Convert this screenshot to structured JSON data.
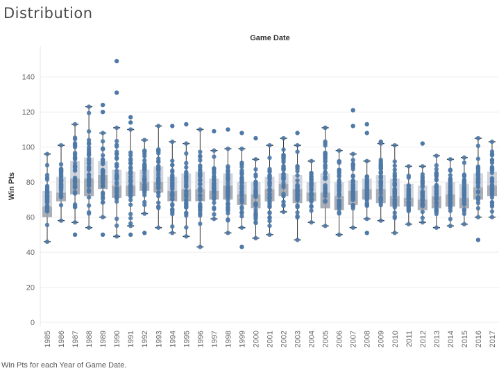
{
  "page": {
    "title": "Distribution",
    "caption": "Win Pts for each Year of Game Date."
  },
  "colors": {
    "point": "#4e79a7",
    "box_upper": "#c9ced8",
    "box_lower": "#9aa0aa",
    "whisker": "#333333",
    "grid": "#eeeeee"
  },
  "chart_data": {
    "type": "scatter",
    "overlay": "box-and-whisker",
    "title": "Game Date",
    "xlabel": "",
    "ylabel": "Win Pts",
    "ylim": [
      0,
      150
    ],
    "yticks": [
      0,
      20,
      40,
      60,
      80,
      100,
      120,
      140
    ],
    "grid": true,
    "categories": [
      "1985",
      "1986",
      "1987",
      "1988",
      "1989",
      "1990",
      "1991",
      "1992",
      "1993",
      "1994",
      "1995",
      "1996",
      "1997",
      "1998",
      "1999",
      "2000",
      "2001",
      "2002",
      "2003",
      "2004",
      "2005",
      "2006",
      "2007",
      "2008",
      "2009",
      "2010",
      "2011",
      "2012",
      "2013",
      "2014",
      "2015",
      "2016",
      "2017"
    ],
    "boxes": [
      {
        "min": 46,
        "q1": 60,
        "median": 66,
        "q3": 75,
        "max": 96
      },
      {
        "min": 58,
        "q1": 69,
        "median": 74,
        "q3": 83,
        "max": 101
      },
      {
        "min": 57,
        "q1": 73,
        "median": 82,
        "q3": 92,
        "max": 113
      },
      {
        "min": 54,
        "q1": 72,
        "median": 82,
        "q3": 94,
        "max": 123
      },
      {
        "min": 60,
        "q1": 76,
        "median": 84,
        "q3": 92,
        "max": 108
      },
      {
        "min": 49,
        "q1": 71,
        "median": 78,
        "q3": 87,
        "max": 111
      },
      {
        "min": 55,
        "q1": 72,
        "median": 78,
        "q3": 86,
        "max": 110
      },
      {
        "min": 62,
        "q1": 75,
        "median": 80,
        "q3": 87,
        "max": 104
      },
      {
        "min": 54,
        "q1": 74,
        "median": 80,
        "q3": 89,
        "max": 112
      },
      {
        "min": 51,
        "q1": 69,
        "median": 75,
        "q3": 83,
        "max": 103
      },
      {
        "min": 49,
        "q1": 69,
        "median": 76,
        "q3": 85,
        "max": 102
      },
      {
        "min": 43,
        "q1": 69,
        "median": 76,
        "q3": 86,
        "max": 110
      },
      {
        "min": 59,
        "q1": 70,
        "median": 75,
        "q3": 82,
        "max": 98
      },
      {
        "min": 51,
        "q1": 70,
        "median": 78,
        "q3": 85,
        "max": 99
      },
      {
        "min": 54,
        "q1": 67,
        "median": 73,
        "q3": 80,
        "max": 99
      },
      {
        "min": 48,
        "q1": 65,
        "median": 73,
        "q3": 80,
        "max": 93
      },
      {
        "min": 50,
        "q1": 69,
        "median": 76,
        "q3": 83,
        "max": 101
      },
      {
        "min": 63,
        "q1": 72,
        "median": 79,
        "q3": 85,
        "max": 105
      },
      {
        "min": 47,
        "q1": 68,
        "median": 76,
        "q3": 84,
        "max": 101
      },
      {
        "min": 57,
        "q1": 69,
        "median": 74,
        "q3": 80,
        "max": 92
      },
      {
        "min": 55,
        "q1": 65,
        "median": 74,
        "q3": 85,
        "max": 111
      },
      {
        "min": 50,
        "q1": 64,
        "median": 72,
        "q3": 80,
        "max": 98
      },
      {
        "min": 54,
        "q1": 67,
        "median": 75,
        "q3": 81,
        "max": 96
      },
      {
        "min": 59,
        "q1": 70,
        "median": 76,
        "q3": 82,
        "max": 92
      },
      {
        "min": 58,
        "q1": 68,
        "median": 76,
        "q3": 84,
        "max": 102
      },
      {
        "min": 51,
        "q1": 66,
        "median": 72,
        "q3": 82,
        "max": 101
      },
      {
        "min": 56,
        "q1": 66,
        "median": 71,
        "q3": 79,
        "max": 89
      },
      {
        "min": 57,
        "q1": 64,
        "median": 70,
        "q3": 78,
        "max": 89
      },
      {
        "min": 54,
        "q1": 65,
        "median": 72,
        "q3": 78,
        "max": 95
      },
      {
        "min": 55,
        "q1": 66,
        "median": 73,
        "q3": 80,
        "max": 93
      },
      {
        "min": 56,
        "q1": 65,
        "median": 71,
        "q3": 79,
        "max": 94
      },
      {
        "min": 60,
        "q1": 70,
        "median": 77,
        "q3": 85,
        "max": 105
      },
      {
        "min": 60,
        "q1": 72,
        "median": 78,
        "q3": 86,
        "max": 103
      }
    ],
    "outliers": [
      {
        "x": "1990",
        "y": 149
      },
      {
        "x": "1990",
        "y": 131
      },
      {
        "x": "1989",
        "y": 124
      },
      {
        "x": "1989",
        "y": 120
      },
      {
        "x": "1991",
        "y": 117
      },
      {
        "x": "1991",
        "y": 114
      },
      {
        "x": "1995",
        "y": 113
      },
      {
        "x": "1994",
        "y": 112
      },
      {
        "x": "2005",
        "y": 111
      },
      {
        "x": "2007",
        "y": 121
      },
      {
        "x": "2007",
        "y": 112
      },
      {
        "x": "2008",
        "y": 113
      },
      {
        "x": "2008",
        "y": 108
      },
      {
        "x": "1998",
        "y": 110
      },
      {
        "x": "1997",
        "y": 109
      },
      {
        "x": "1999",
        "y": 108
      },
      {
        "x": "2003",
        "y": 108
      },
      {
        "x": "2000",
        "y": 105
      },
      {
        "x": "2012",
        "y": 102
      },
      {
        "x": "2009",
        "y": 103
      },
      {
        "x": "2016",
        "y": 47
      },
      {
        "x": "1999",
        "y": 43
      },
      {
        "x": "1989",
        "y": 50
      },
      {
        "x": "1991",
        "y": 50
      },
      {
        "x": "2008",
        "y": 51
      },
      {
        "x": "1992",
        "y": 51
      },
      {
        "x": "1987",
        "y": 50
      }
    ]
  }
}
